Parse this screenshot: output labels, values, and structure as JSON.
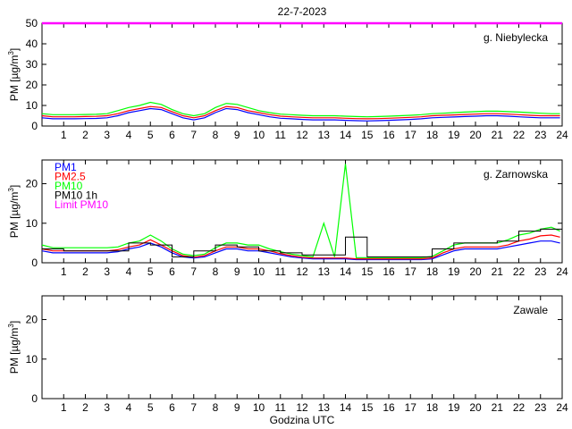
{
  "title": "22-7-2023",
  "xlabel": "Godzina UTC",
  "colors": {
    "pm1": "#0000ff",
    "pm25": "#ff0000",
    "pm10": "#00ff00",
    "pm10_1h": "#000000",
    "limit": "#ff00ff"
  },
  "chart_data": [
    {
      "type": "line",
      "station": "g. Niebylecka",
      "ylabel": "PM [µg/m³]",
      "xlim": [
        0,
        24
      ],
      "ylim": [
        0,
        50
      ],
      "yticks": [
        0,
        10,
        20,
        30,
        40,
        50
      ],
      "xticks": [
        1,
        2,
        3,
        4,
        5,
        6,
        7,
        8,
        9,
        10,
        11,
        12,
        13,
        14,
        15,
        16,
        17,
        18,
        19,
        20,
        21,
        22,
        23,
        24
      ],
      "grid": false,
      "limit_pm10": 50,
      "x": [
        0,
        0.5,
        1,
        1.5,
        2,
        2.5,
        3,
        3.5,
        4,
        4.5,
        5,
        5.5,
        6,
        6.5,
        7,
        7.5,
        8,
        8.5,
        9,
        9.5,
        10,
        10.5,
        11,
        11.5,
        12,
        12.5,
        13,
        13.5,
        14,
        14.5,
        15,
        15.5,
        16,
        16.5,
        17,
        17.5,
        18,
        18.5,
        19,
        19.5,
        20,
        20.5,
        21,
        21.5,
        22,
        22.5,
        23,
        23.5,
        23.9
      ],
      "series": [
        {
          "name": "PM1",
          "color": "#0000ff",
          "values": [
            4,
            3.5,
            3.5,
            3.5,
            3.6,
            3.7,
            4,
            5,
            6.5,
            7.5,
            8.5,
            8,
            6,
            4,
            3,
            4,
            6.5,
            8.5,
            8,
            6.5,
            5.5,
            4.5,
            3.8,
            3.5,
            3.2,
            3,
            3,
            3,
            2.8,
            2.6,
            2.5,
            2.6,
            2.8,
            3,
            3.2,
            3.5,
            4,
            4.2,
            4.4,
            4.6,
            4.8,
            5,
            5,
            4.8,
            4.5,
            4.2,
            4,
            4,
            4
          ]
        },
        {
          "name": "PM2.5",
          "color": "#ff0000",
          "values": [
            5,
            4.5,
            4.5,
            4.5,
            4.6,
            4.7,
            5,
            6,
            7.5,
            8.5,
            9.5,
            9,
            7,
            5,
            4,
            5,
            7.5,
            9.5,
            9,
            7.5,
            6.5,
            5.5,
            4.8,
            4.5,
            4.2,
            4,
            4,
            4,
            3.8,
            3.6,
            3.5,
            3.6,
            3.8,
            4,
            4.2,
            4.5,
            5,
            5.2,
            5.4,
            5.6,
            5.8,
            6,
            6,
            5.8,
            5.5,
            5.2,
            5,
            5,
            5
          ]
        },
        {
          "name": "PM10",
          "color": "#00ff00",
          "values": [
            6,
            5.5,
            5.5,
            5.5,
            5.6,
            5.7,
            6,
            7.5,
            9,
            10,
            11.5,
            10.5,
            8,
            6,
            5,
            6,
            9,
            11,
            10.5,
            9,
            7.5,
            6.5,
            5.8,
            5.5,
            5.2,
            5,
            5,
            5,
            4.8,
            4.6,
            4.5,
            4.6,
            4.8,
            5,
            5.2,
            5.5,
            6,
            6.2,
            6.5,
            6.8,
            7,
            7.2,
            7.2,
            7,
            6.8,
            6.5,
            6.2,
            6,
            6
          ]
        }
      ]
    },
    {
      "type": "line",
      "station": "g. Zarnowska",
      "ylabel": "PM [µg/m³]",
      "xlim": [
        0,
        24
      ],
      "ylim": [
        0,
        26
      ],
      "yticks": [
        0,
        10,
        20
      ],
      "xticks": [
        1,
        2,
        3,
        4,
        5,
        6,
        7,
        8,
        9,
        10,
        11,
        12,
        13,
        14,
        15,
        16,
        17,
        18,
        19,
        20,
        21,
        22,
        23,
        24
      ],
      "grid": false,
      "legend": [
        "PM1",
        "PM2.5",
        "PM10",
        "PM10 1h",
        "Limit PM10"
      ],
      "legend_position": "top-left",
      "x": [
        0,
        0.5,
        1,
        1.5,
        2,
        2.5,
        3,
        3.5,
        4,
        4.5,
        5,
        5.5,
        6,
        6.5,
        7,
        7.5,
        8,
        8.5,
        9,
        9.5,
        10,
        10.5,
        11,
        11.5,
        12,
        12.5,
        13,
        13.5,
        14,
        14.5,
        15,
        15.5,
        16,
        16.5,
        17,
        17.5,
        18,
        18.5,
        19,
        19.5,
        20,
        20.5,
        21,
        21.5,
        22,
        22.5,
        23,
        23.5,
        23.9
      ],
      "series": [
        {
          "name": "PM1",
          "color": "#0000ff",
          "values": [
            3,
            2.5,
            2.5,
            2.5,
            2.5,
            2.5,
            2.5,
            2.8,
            3.5,
            4,
            5,
            4,
            2.5,
            1.5,
            1.2,
            1.5,
            2.5,
            3.5,
            3.5,
            3,
            3,
            2.5,
            2,
            1.5,
            1.2,
            1,
            1,
            1,
            1,
            0.8,
            0.8,
            0.8,
            0.8,
            0.8,
            0.8,
            0.8,
            1,
            2,
            3,
            3.5,
            3.5,
            3.5,
            3.5,
            4,
            4.5,
            5,
            5.5,
            5.5,
            5
          ]
        },
        {
          "name": "PM2.5",
          "color": "#ff0000",
          "values": [
            3.5,
            3,
            3,
            3,
            3,
            3,
            3,
            3.3,
            4,
            4.5,
            5.8,
            4.5,
            3,
            1.8,
            1.4,
            1.8,
            3,
            4,
            4,
            3.5,
            3.5,
            3,
            2.3,
            1.8,
            1.4,
            1.2,
            1.2,
            1.2,
            1.2,
            1,
            1,
            1,
            1,
            1,
            1,
            1,
            1.2,
            2.5,
            3.5,
            4,
            4,
            4,
            4,
            4.5,
            5.5,
            6,
            6.8,
            7,
            6.5
          ]
        },
        {
          "name": "PM10",
          "color": "#00ff00",
          "values": [
            4.5,
            3.8,
            3.8,
            3.8,
            3.8,
            3.8,
            3.8,
            4,
            5,
            5.5,
            7,
            5.5,
            3.5,
            2.2,
            1.8,
            2.2,
            3.8,
            5,
            5,
            4.5,
            4.5,
            3.5,
            2.8,
            2.2,
            1.8,
            1.5,
            10,
            1.5,
            25,
            1.3,
            1.3,
            1.3,
            1.3,
            1.3,
            1.3,
            1.3,
            1.6,
            3,
            4.5,
            5,
            5,
            5,
            5,
            5.8,
            7,
            7.5,
            8.5,
            9,
            8
          ]
        },
        {
          "name": "PM10 1h",
          "color": "#000000",
          "values": [
            3.5,
            3.5,
            3,
            3,
            3,
            3,
            3,
            3,
            5,
            5,
            4.5,
            4.5,
            1.5,
            1.5,
            3,
            3,
            4.5,
            4.5,
            4,
            4,
            3,
            3,
            2.5,
            2.5,
            2,
            2,
            2,
            2,
            6.5,
            6.5,
            1.5,
            1.5,
            1.5,
            1.5,
            1.5,
            1.5,
            3.5,
            3.5,
            5,
            5,
            5,
            5,
            5.5,
            5.5,
            8,
            8,
            8.5,
            8.5,
            8.5
          ]
        }
      ]
    },
    {
      "type": "line",
      "station": "Zawale",
      "ylabel": "PM [µg/m³]",
      "xlim": [
        0,
        24
      ],
      "ylim": [
        0,
        26
      ],
      "yticks": [
        0,
        10,
        20
      ],
      "xticks": [
        1,
        2,
        3,
        4,
        5,
        6,
        7,
        8,
        9,
        10,
        11,
        12,
        13,
        14,
        15,
        16,
        17,
        18,
        19,
        20,
        21,
        22,
        23,
        24
      ],
      "grid": false,
      "series": []
    }
  ]
}
